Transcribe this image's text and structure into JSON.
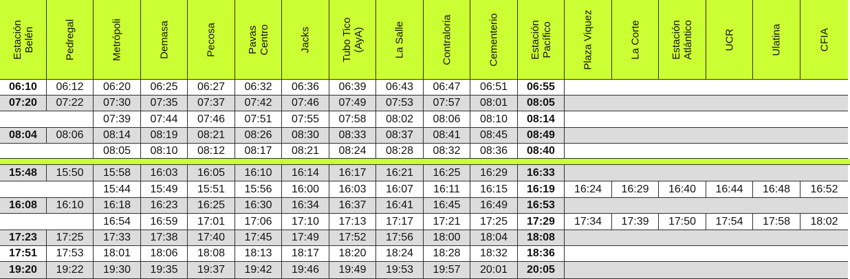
{
  "stations": [
    "Estación\nBelén",
    "Pedregal",
    "Metrópoli",
    "Demasa",
    "Pecosa",
    "Pavas\nCentro",
    "Jacks",
    "Tubo Tico\n(AyA)",
    "La Salle",
    "Contraloria",
    "Cementerio",
    "Estación\nPacífico",
    "Plaza Viquez",
    "La Corte",
    "Estación\nAtlántico",
    "UCR",
    "Ulatina",
    "CFIA"
  ],
  "colors": {
    "header": "#ccff33",
    "row_alt": "#dcdcdc",
    "row_plain": "#ffffff"
  },
  "morning_rows": [
    {
      "shaded": false,
      "times": [
        "06:10",
        "06:12",
        "06:20",
        "06:25",
        "06:27",
        "06:32",
        "06:36",
        "06:39",
        "06:43",
        "06:47",
        "06:51",
        "06:55",
        "",
        "",
        "",
        "",
        "",
        ""
      ]
    },
    {
      "shaded": true,
      "times": [
        "07:20",
        "07:22",
        "07:30",
        "07:35",
        "07:37",
        "07:42",
        "07:46",
        "07:49",
        "07:53",
        "07:57",
        "08:01",
        "08:05",
        "",
        "",
        "",
        "",
        "",
        ""
      ]
    },
    {
      "shaded": false,
      "times": [
        "",
        "",
        "07:39",
        "07:44",
        "07:46",
        "07:51",
        "07:55",
        "07:58",
        "08:02",
        "08:06",
        "08:10",
        "08:14",
        "",
        "",
        "",
        "",
        "",
        ""
      ]
    },
    {
      "shaded": true,
      "times": [
        "08:04",
        "08:06",
        "08:14",
        "08:19",
        "08:21",
        "08:26",
        "08:30",
        "08:33",
        "08:37",
        "08:41",
        "08:45",
        "08:49",
        "",
        "",
        "",
        "",
        "",
        ""
      ]
    },
    {
      "shaded": false,
      "times": [
        "",
        "",
        "08:05",
        "08:10",
        "08:12",
        "08:17",
        "08:21",
        "08:24",
        "08:28",
        "08:32",
        "08:36",
        "08:40",
        "",
        "",
        "",
        "",
        "",
        ""
      ]
    }
  ],
  "afternoon_rows": [
    {
      "shaded": true,
      "times": [
        "15:48",
        "15:50",
        "15:58",
        "16:03",
        "16:05",
        "16:10",
        "16:14",
        "16:17",
        "16:21",
        "16:25",
        "16:29",
        "16:33",
        "",
        "",
        "",
        "",
        "",
        ""
      ]
    },
    {
      "shaded": false,
      "times": [
        "",
        "",
        "15:44",
        "15:49",
        "15:51",
        "15:56",
        "16:00",
        "16:03",
        "16:07",
        "16:11",
        "16:15",
        "16:19",
        "16:24",
        "16:29",
        "16:40",
        "16:44",
        "16:48",
        "16:52"
      ]
    },
    {
      "shaded": true,
      "times": [
        "16:08",
        "16:10",
        "16:18",
        "16:23",
        "16:25",
        "16:30",
        "16:34",
        "16:37",
        "16:41",
        "16:45",
        "16:49",
        "16:53",
        "",
        "",
        "",
        "",
        "",
        ""
      ]
    },
    {
      "shaded": false,
      "times": [
        "",
        "",
        "16:54",
        "16:59",
        "17:01",
        "17:06",
        "17:10",
        "17:13",
        "17:17",
        "17:21",
        "17:25",
        "17:29",
        "17:34",
        "17:39",
        "17:50",
        "17:54",
        "17:58",
        "18:02"
      ]
    },
    {
      "shaded": true,
      "times": [
        "17:23",
        "17:25",
        "17:33",
        "17:38",
        "17:40",
        "17:45",
        "17:49",
        "17:52",
        "17:56",
        "18:00",
        "18:04",
        "18:08",
        "",
        "",
        "",
        "",
        "",
        ""
      ]
    },
    {
      "shaded": false,
      "times": [
        "17:51",
        "17:53",
        "18:01",
        "18:06",
        "18:08",
        "18:13",
        "18:17",
        "18:20",
        "18:24",
        "18:28",
        "18:32",
        "18:36",
        "",
        "",
        "",
        "",
        "",
        ""
      ]
    },
    {
      "shaded": true,
      "times": [
        "19:20",
        "19:22",
        "19:30",
        "19:35",
        "19:37",
        "19:42",
        "19:46",
        "19:49",
        "19:53",
        "19:57",
        "20:01",
        "20:05",
        "",
        "",
        "",
        "",
        "",
        ""
      ]
    }
  ]
}
